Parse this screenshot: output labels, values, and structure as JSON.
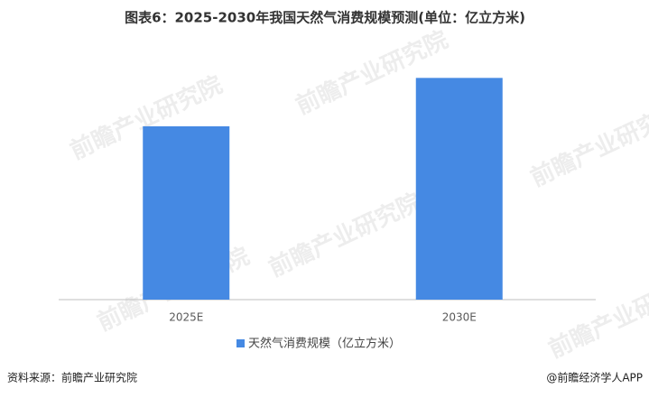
{
  "chart_data": {
    "type": "bar",
    "title": "图表6：2025-2030年我国天然气消费规模预测(单位：亿立方米)",
    "categories": [
      "2025E",
      "2030E"
    ],
    "series": [
      {
        "name": "天然气消费规模（亿立方米）",
        "color": "#4589e3",
        "values": [
          4300,
          5500
        ]
      }
    ],
    "ylim": [
      0,
      6000
    ],
    "source": "资料来源：前瞻产业研究院",
    "credit": "@前瞻经济学人APP",
    "watermark": "前瞻产业研究院"
  }
}
